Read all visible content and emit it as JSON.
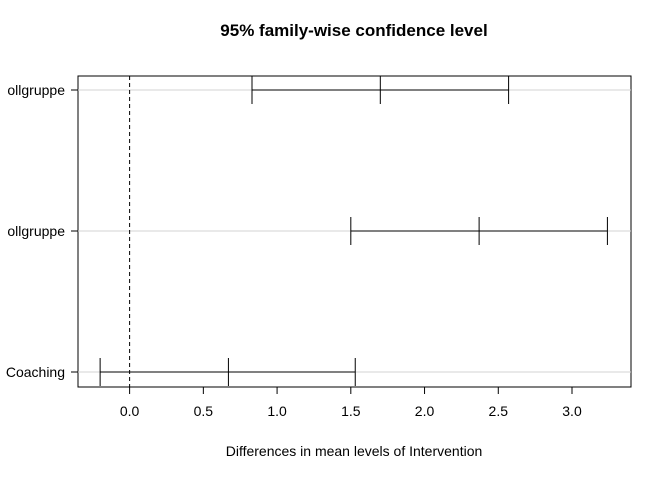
{
  "chart_data": {
    "type": "interval",
    "title": "95% family-wise confidence level",
    "xlabel": "Differences in mean levels of Intervention",
    "ylabel": "",
    "xlim": [
      -0.35,
      3.4
    ],
    "x_ticks": [
      0.0,
      0.5,
      1.0,
      1.5,
      2.0,
      2.5,
      3.0
    ],
    "x_tick_labels": [
      "0.0",
      "0.5",
      "1.0",
      "1.5",
      "2.0",
      "2.5",
      "3.0"
    ],
    "reference_line": {
      "x": 0,
      "style": "dashed"
    },
    "grid": "horizontal lines at each comparison",
    "comparisons": [
      {
        "label": "ollgruppe",
        "lwr": 0.83,
        "diff": 1.7,
        "upr": 2.57
      },
      {
        "label": "ollgruppe",
        "lwr": 1.5,
        "diff": 2.37,
        "upr": 3.24
      },
      {
        "label": "Coaching",
        "lwr": -0.2,
        "diff": 0.67,
        "upr": 1.53
      }
    ]
  }
}
